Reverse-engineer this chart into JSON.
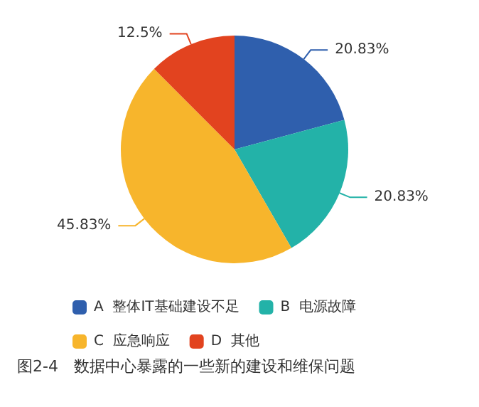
{
  "chart_data": {
    "type": "pie",
    "categories": [
      "A  整体IT基础建设不足",
      "B  电源故障",
      "C  应急响应",
      "D  其他"
    ],
    "values": [
      20.83,
      20.83,
      45.83,
      12.5
    ],
    "colors": [
      "#2f5fad",
      "#23b2a8",
      "#f7b52c",
      "#e2431f"
    ],
    "value_labels": [
      "20.83%",
      "20.83%",
      "45.83%",
      "12.5%"
    ],
    "legend": "bottom",
    "annotations": [
      "图2-4　数据中心暴露的一些新的建设和维保问题"
    ]
  }
}
